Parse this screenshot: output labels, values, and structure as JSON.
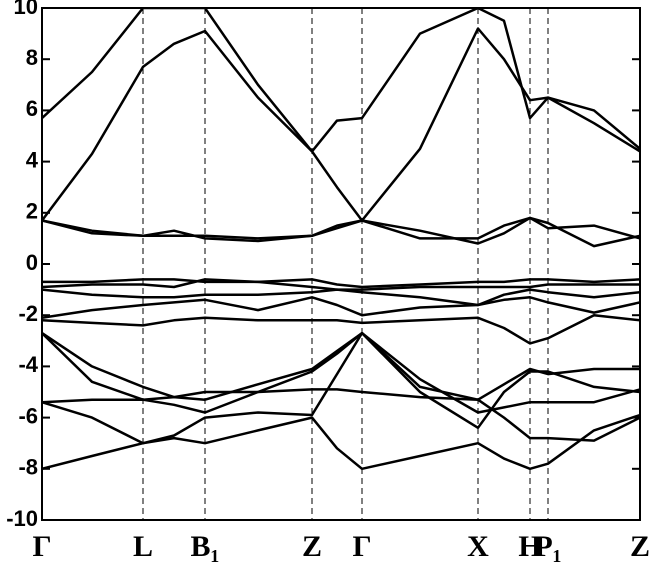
{
  "chart_data": {
    "type": "line",
    "x": [
      0,
      0.5,
      1.01,
      1.32,
      1.63,
      2.16,
      2.7,
      2.95,
      3.2,
      3.78,
      4.36,
      4.62,
      4.88,
      5.06,
      5.52,
      5.98
    ],
    "xlim": [
      0,
      5.98
    ],
    "xticks": [
      {
        "value": 0,
        "label": "Γ"
      },
      {
        "value": 1.01,
        "label": "L"
      },
      {
        "value": 1.63,
        "label": "B₁"
      },
      {
        "value": 2.7,
        "label": "Z"
      },
      {
        "value": 3.2,
        "label": "Γ"
      },
      {
        "value": 4.36,
        "label": "X"
      },
      {
        "value": 4.88,
        "label": "H"
      },
      {
        "value": 5.06,
        "label": "P₁"
      },
      {
        "value": 5.98,
        "label": "Z"
      }
    ],
    "ylim": [
      -10,
      10
    ],
    "yticks": [
      -10,
      -8,
      -6,
      -4,
      -2,
      0,
      2,
      4,
      6,
      8,
      10
    ],
    "color": "#000000",
    "series": [
      {
        "values": [
          -8.0,
          -7.5,
          -7.0,
          -6.8,
          -7.0,
          -6.5,
          -6.0,
          -7.2,
          -8.0,
          -7.5,
          -7.0,
          -7.6,
          -8.0,
          -7.8,
          -6.5,
          -5.9
        ]
      },
      {
        "values": [
          -5.4,
          -6.0,
          -7.0,
          -6.7,
          -6.0,
          -5.8,
          -5.9,
          -4.3,
          -2.7,
          -4.5,
          -5.8,
          -5.6,
          -5.4,
          -5.4,
          -5.4,
          -4.9
        ]
      },
      {
        "values": [
          -5.4,
          -5.3,
          -5.3,
          -5.2,
          -5.0,
          -5.0,
          -4.9,
          -4.9,
          -5.0,
          -5.2,
          -5.3,
          -6.0,
          -6.8,
          -6.8,
          -6.9,
          -6.0
        ]
      },
      {
        "values": [
          -2.7,
          -4.0,
          -4.8,
          -5.2,
          -5.3,
          -4.7,
          -4.1,
          -3.4,
          -2.7,
          -4.8,
          -5.3,
          -4.7,
          -4.1,
          -4.3,
          -4.1,
          -4.1
        ]
      },
      {
        "values": [
          -2.7,
          -4.6,
          -5.3,
          -5.5,
          -5.8,
          -5.0,
          -4.2,
          -3.5,
          -2.7,
          -5.0,
          -6.4,
          -5.0,
          -4.2,
          -4.2,
          -4.8,
          -5.0
        ]
      },
      {
        "values": [
          -2.2,
          -2.3,
          -2.4,
          -2.2,
          -2.1,
          -2.2,
          -2.2,
          -2.2,
          -2.3,
          -2.2,
          -2.1,
          -2.5,
          -3.1,
          -2.9,
          -2.0,
          -2.2
        ]
      },
      {
        "values": [
          -2.1,
          -1.8,
          -1.6,
          -1.5,
          -1.4,
          -1.8,
          -1.3,
          -1.6,
          -2.0,
          -1.7,
          -1.6,
          -1.4,
          -1.3,
          -1.5,
          -1.9,
          -1.5
        ]
      },
      {
        "values": [
          -1.0,
          -1.2,
          -1.3,
          -1.3,
          -1.2,
          -1.2,
          -1.1,
          -1.0,
          -1.1,
          -1.3,
          -1.6,
          -1.2,
          -1.0,
          -1.1,
          -1.3,
          -1.1
        ]
      },
      {
        "values": [
          -0.7,
          -0.7,
          -0.6,
          -0.6,
          -0.7,
          -0.7,
          -0.6,
          -0.8,
          -0.9,
          -0.8,
          -0.7,
          -0.7,
          -0.6,
          -0.6,
          -0.7,
          -0.6
        ]
      },
      {
        "values": [
          -0.9,
          -0.8,
          -0.8,
          -0.9,
          -0.6,
          -0.7,
          -0.9,
          -1.0,
          -1.0,
          -0.9,
          -0.9,
          -0.9,
          -0.9,
          -0.8,
          -0.8,
          -0.8
        ]
      },
      {
        "values": [
          1.7,
          1.3,
          1.1,
          1.1,
          1.1,
          1.0,
          1.1,
          1.4,
          1.7,
          1.3,
          0.8,
          1.2,
          1.8,
          1.6,
          0.7,
          1.1
        ]
      },
      {
        "values": [
          1.7,
          1.2,
          1.1,
          1.3,
          1.0,
          0.9,
          1.1,
          1.5,
          1.7,
          1.0,
          1.0,
          1.5,
          1.8,
          1.4,
          1.5,
          1.0
        ]
      },
      {
        "values": [
          1.7,
          4.3,
          7.7,
          8.6,
          9.1,
          6.5,
          4.4,
          3.0,
          1.7,
          4.5,
          9.2,
          8.0,
          6.4,
          6.5,
          5.5,
          4.4
        ]
      },
      {
        "values": [
          5.7,
          7.5,
          10,
          10,
          10,
          7.0,
          4.4,
          5.6,
          5.7,
          9.0,
          10,
          9.5,
          5.7,
          6.5,
          6.0,
          4.5
        ]
      }
    ]
  }
}
